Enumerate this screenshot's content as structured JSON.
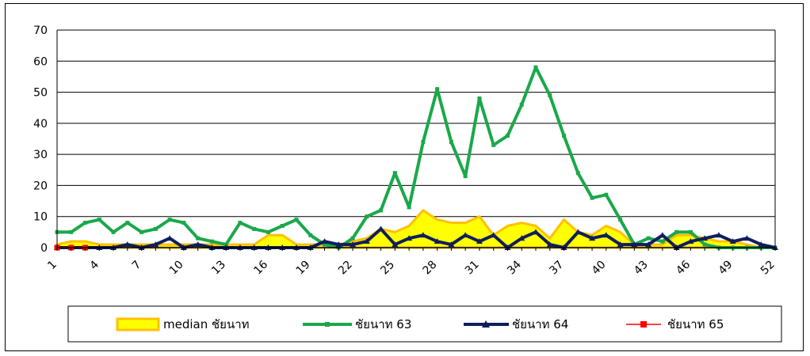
{
  "chart_data": {
    "type": "area",
    "title": "",
    "xlabel": "",
    "ylabel": "",
    "ylim": [
      0,
      70
    ],
    "yticks": [
      0,
      10,
      20,
      30,
      40,
      50,
      60,
      70
    ],
    "xlim": [
      1,
      52
    ],
    "xticks": [
      1,
      4,
      7,
      10,
      13,
      16,
      19,
      22,
      25,
      28,
      31,
      34,
      37,
      40,
      43,
      46,
      49,
      52
    ],
    "grid": "horizontal",
    "legend_position": "bottom",
    "colors": {
      "median_fill": "#FFFF00",
      "median_edge": "#FFC000",
      "s63": "#1AA84A",
      "s64": "#0F1E5C",
      "s65": "#FF0000"
    },
    "series": [
      {
        "name": "median ชัยนาท",
        "kind": "area",
        "values": [
          1,
          2,
          2,
          1,
          1,
          1,
          1,
          1,
          1,
          1,
          1,
          1,
          1,
          1,
          1,
          4,
          4,
          1,
          1,
          1,
          1,
          2,
          3,
          6,
          5,
          7,
          12,
          9,
          8,
          8,
          10,
          4,
          7,
          8,
          7,
          3,
          9,
          5,
          4,
          7,
          5,
          1,
          1,
          1,
          4,
          4,
          3,
          2,
          2,
          1,
          0,
          0
        ]
      },
      {
        "name": "ชัยนาท 63",
        "kind": "line",
        "values": [
          5,
          5,
          8,
          9,
          5,
          8,
          5,
          6,
          9,
          8,
          3,
          2,
          1,
          8,
          6,
          5,
          7,
          9,
          4,
          1,
          0,
          3,
          10,
          12,
          24,
          13,
          34,
          51,
          34,
          23,
          48,
          33,
          36,
          46,
          58,
          49,
          36,
          24,
          16,
          17,
          9,
          1,
          3,
          2,
          5,
          5,
          1,
          0,
          0,
          0,
          0,
          0
        ]
      },
      {
        "name": "ชัยนาท 64",
        "kind": "line",
        "values": [
          0,
          0,
          0,
          0,
          0,
          1,
          0,
          1,
          3,
          0,
          1,
          0,
          0,
          0,
          0,
          0,
          0,
          0,
          0,
          2,
          1,
          1,
          2,
          6,
          1,
          3,
          4,
          2,
          1,
          4,
          2,
          4,
          0,
          3,
          5,
          1,
          0,
          5,
          3,
          4,
          1,
          1,
          1,
          4,
          0,
          2,
          3,
          4,
          2,
          3,
          1,
          0
        ]
      },
      {
        "name": "ชัยนาท 65",
        "kind": "line",
        "values": [
          0,
          0,
          0
        ]
      }
    ]
  }
}
